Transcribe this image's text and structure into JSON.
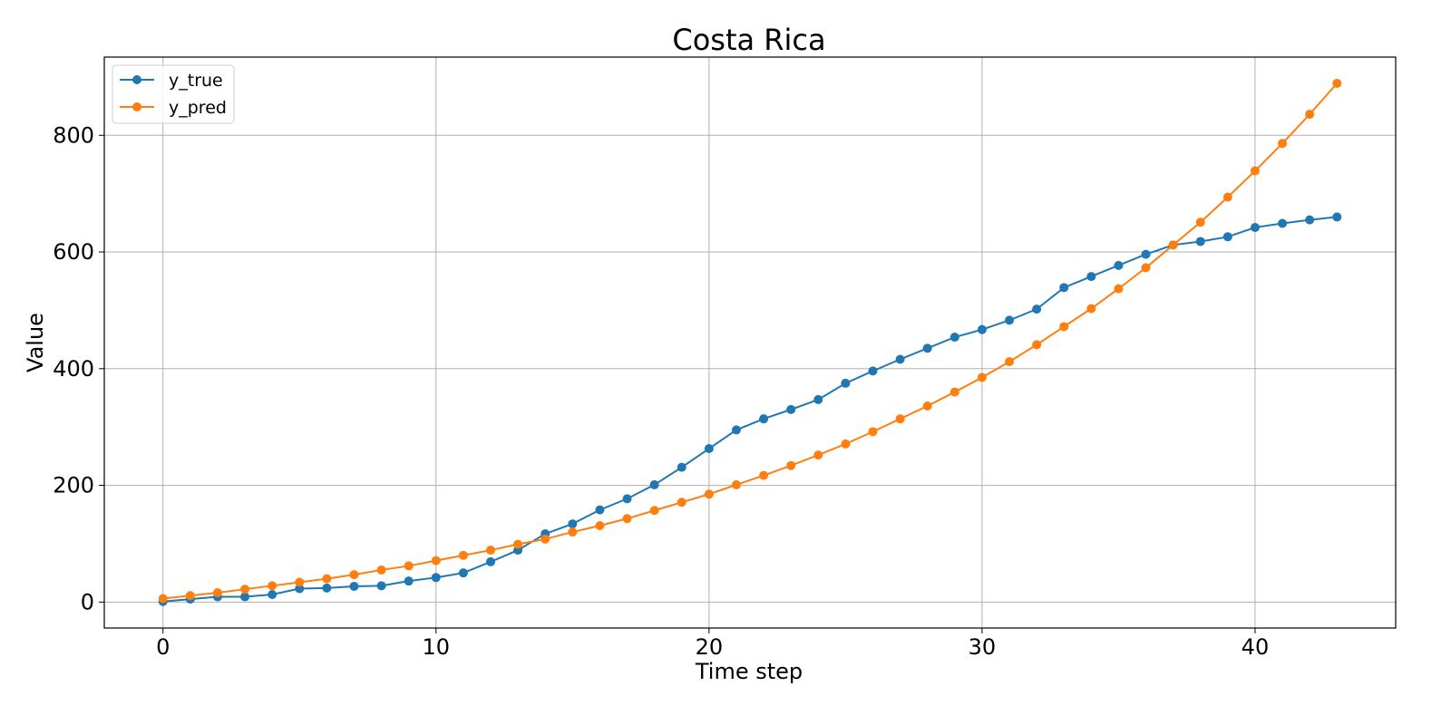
{
  "chart_data": {
    "type": "line",
    "title": "Costa Rica",
    "xlabel": "Time step",
    "ylabel": "Value",
    "xlim": [
      -2.15,
      45.15
    ],
    "ylim": [
      -44.5,
      934
    ],
    "xticks": [
      0,
      10,
      20,
      30,
      40
    ],
    "yticks": [
      0,
      200,
      400,
      600,
      800
    ],
    "grid": true,
    "legend_position": "top-left",
    "x": [
      0,
      1,
      2,
      3,
      4,
      5,
      6,
      7,
      8,
      9,
      10,
      11,
      12,
      13,
      14,
      15,
      16,
      17,
      18,
      19,
      20,
      21,
      22,
      23,
      24,
      25,
      26,
      27,
      28,
      29,
      30,
      31,
      32,
      33,
      34,
      35,
      36,
      37,
      38,
      39,
      40,
      41,
      42,
      43
    ],
    "series": [
      {
        "name": "y_true",
        "color": "#1f77b4",
        "values": [
          1,
          5,
          9,
          9,
          13,
          23,
          24,
          27,
          28,
          36,
          42,
          50,
          69,
          89,
          117,
          134,
          158,
          177,
          201,
          231,
          263,
          295,
          314,
          330,
          347,
          375,
          396,
          416,
          435,
          454,
          467,
          483,
          502,
          539,
          558,
          577,
          596,
          612,
          618,
          626,
          642,
          649,
          655,
          660
        ]
      },
      {
        "name": "y_pred",
        "color": "#ff7f0e",
        "values": [
          6,
          11,
          16,
          22,
          28,
          34,
          40,
          47,
          55,
          62,
          71,
          80,
          89,
          99,
          108,
          120,
          131,
          143,
          157,
          171,
          185,
          201,
          217,
          234,
          252,
          271,
          292,
          314,
          336,
          360,
          385,
          412,
          441,
          472,
          503,
          537,
          573,
          612,
          651,
          694,
          739,
          786,
          836,
          889
        ]
      }
    ]
  }
}
